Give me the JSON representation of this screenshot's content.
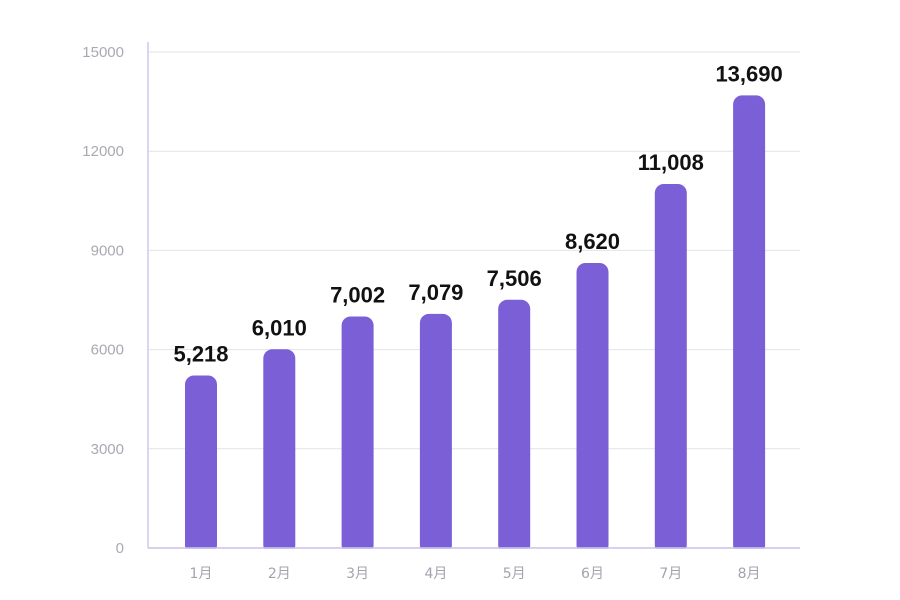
{
  "chart_data": {
    "type": "bar",
    "categories": [
      "1月",
      "2月",
      "3月",
      "4月",
      "5月",
      "6月",
      "7月",
      "8月"
    ],
    "values": [
      5218,
      6010,
      7002,
      7079,
      7506,
      8620,
      11008,
      13690
    ],
    "data_labels": [
      "5,218",
      "6,010",
      "7,002",
      "7,079",
      "7,506",
      "8,620",
      "11,008",
      "13,690"
    ],
    "y_ticks": [
      0,
      3000,
      6000,
      9000,
      12000,
      15000
    ],
    "y_tick_labels": [
      "0",
      "3000",
      "6000",
      "9000",
      "12000",
      "15000"
    ],
    "ylim": [
      0,
      15000
    ],
    "grid": true,
    "bar_color": "#7b5fd7",
    "title": "",
    "xlabel": "",
    "ylabel": ""
  }
}
